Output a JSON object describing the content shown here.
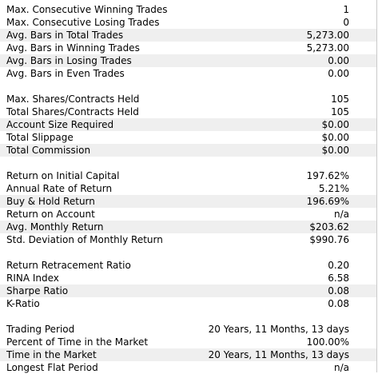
{
  "groups": [
    {
      "rows": [
        {
          "label": "Max. Consecutive Winning Trades",
          "value": "1"
        },
        {
          "label": "Max. Consecutive Losing Trades",
          "value": "0"
        },
        {
          "label": "Avg. Bars in Total Trades",
          "value": "5,273.00"
        },
        {
          "label": "Avg. Bars in Winning Trades",
          "value": "5,273.00"
        },
        {
          "label": "Avg. Bars in Losing Trades",
          "value": "0.00"
        },
        {
          "label": "Avg. Bars in Even Trades",
          "value": "0.00"
        }
      ]
    },
    {
      "rows": [
        {
          "label": "Max. Shares/Contracts Held",
          "value": "105"
        },
        {
          "label": "Total Shares/Contracts Held",
          "value": "105"
        },
        {
          "label": "Account Size Required",
          "value": "$0.00"
        },
        {
          "label": "Total Slippage",
          "value": "$0.00"
        },
        {
          "label": "Total Commission",
          "value": "$0.00"
        }
      ]
    },
    {
      "rows": [
        {
          "label": "Return on Initial Capital",
          "value": "197.62%"
        },
        {
          "label": "Annual Rate of Return",
          "value": "5.21%"
        },
        {
          "label": "Buy & Hold Return",
          "value": "196.69%"
        },
        {
          "label": "Return on Account",
          "value": "n/a"
        },
        {
          "label": "Avg. Monthly Return",
          "value": "$203.62"
        },
        {
          "label": "Std. Deviation of Monthly Return",
          "value": "$990.76"
        }
      ]
    },
    {
      "rows": [
        {
          "label": "Return Retracement Ratio",
          "value": "0.20"
        },
        {
          "label": "RINA Index",
          "value": "6.58"
        },
        {
          "label": "Sharpe Ratio",
          "value": "0.08"
        },
        {
          "label": "K-Ratio",
          "value": "0.08"
        }
      ]
    },
    {
      "rows": [
        {
          "label": "Trading Period",
          "value": "20 Years, 11 Months, 13 days"
        },
        {
          "label": "Percent of Time in the Market",
          "value": "100.00%"
        },
        {
          "label": "Time in the Market",
          "value": "20 Years, 11 Months, 13 days"
        },
        {
          "label": "Longest Flat Period",
          "value": "n/a"
        }
      ]
    }
  ]
}
